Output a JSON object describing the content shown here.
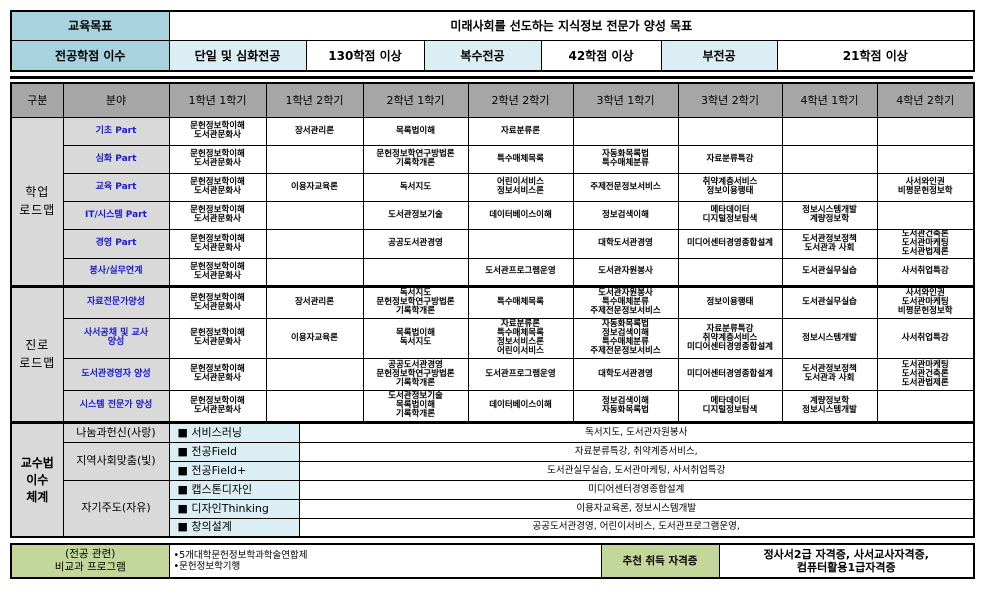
{
  "goal": {
    "label": "교육목표",
    "value": "미래사회를 선도하는 지식정보 전문가 양성 목표"
  },
  "credits": {
    "label": "전공학점 이수",
    "items": [
      {
        "name": "단일 및 심화전공",
        "value": "130학점 이상"
      },
      {
        "name": "복수전공",
        "value": "42학점 이상"
      },
      {
        "name": "부전공",
        "value": "21학점 이상"
      }
    ]
  },
  "roadmap": {
    "headers": [
      "구분",
      "분야",
      "1학년 1학기",
      "1학년 2학기",
      "2학년 1학기",
      "2학년 2학기",
      "3학년 1학기",
      "3학년 2학기",
      "4학년 1학기",
      "4학년 2학기"
    ],
    "groups": [
      {
        "label": "학업\n로드맵",
        "rows": [
          {
            "field": "기초 Part",
            "cells": [
              "문헌정보학이해\n도서관문화사",
              "장서관리론",
              "목록법이해",
              "자료분류론",
              "",
              "",
              "",
              ""
            ]
          },
          {
            "field": "심화 Part",
            "cells": [
              "문헌정보학이해\n도서관문화사",
              "",
              "문헌정보학연구방법론\n기록학개론",
              "특수매체목록",
              "자동화목록법\n특수매체분류",
              "자료분류특강",
              "",
              ""
            ]
          },
          {
            "field": "교육 Part",
            "cells": [
              "문헌정보학이해\n도서관문화사",
              "이용자교육론",
              "독서지도",
              "어린이서비스\n정보서비스론",
              "주제전문정보서비스",
              "취약계층서비스\n정보이용행태",
              "",
              "사서와인권\n비평문헌정보학"
            ]
          },
          {
            "field": "IT/시스템 Part",
            "cells": [
              "문헌정보학이해\n도서관문화사",
              "",
              "도서관정보기술",
              "데이터베이스이해",
              "정보검색이해",
              "메타데이터\n디지털정보탐색",
              "정보시스템개발\n계량정보학",
              ""
            ]
          },
          {
            "field": "경영 Part",
            "cells": [
              "문헌정보학이해\n도서관문화사",
              "",
              "공공도서관경영",
              "",
              "대학도서관경영",
              "미디어센터경영종합설계",
              "도서관정보정책\n도서관과 사회",
              "도서관건축론\n도서관마케팅\n도서관법제론"
            ]
          },
          {
            "field": "봉사/실무연계",
            "cells": [
              "문헌정보학이해\n도서관문화사",
              "",
              "",
              "도서관프로그램운영",
              "도서관자원봉사",
              "",
              "도서관실무실습",
              "사서취업특강"
            ]
          }
        ]
      },
      {
        "label": "진로\n로드맵",
        "rows": [
          {
            "field": "자료전문가양성",
            "cells": [
              "문헌정보학이해\n도서관문화사",
              "장서관리론",
              "독서지도\n문헌정보학연구방법론\n기록학개론",
              "특수매체목록",
              "도서관자원봉사\n특수매체분류\n주제전문정보서비스",
              "정보이용행태",
              "도서관실무실습",
              "사서와인권\n도서관마케팅\n비평문헌정보학"
            ]
          },
          {
            "field": "사서공채 및 교사\n양성",
            "cells": [
              "문헌정보학이해\n도서관문화사",
              "이용자교육론",
              "목록법이해\n독서지도",
              "자료분류론\n특수매체목록\n정보서비스론\n어린이서비스",
              "자동화목록법\n정보검색이해\n특수매체분류\n주제전문정보서비스",
              "자료분류특강\n취약계층서비스\n미디어센터경영종합설계",
              "정보시스템개발",
              "사서취업특강"
            ]
          },
          {
            "field": "도서관경영자 양성",
            "cells": [
              "문헌정보학이해\n도서관문화사",
              "",
              "공공도서관경영\n문헌정보학연구방법론\n기록학개론",
              "도서관프로그램운영",
              "대학도서관경영",
              "미디어센터경영종합설계",
              "도서관정보정책\n도서관과 사회",
              "도서관마케팅\n도서관건축론\n도서관법제론"
            ]
          },
          {
            "field": "시스템 전문가 양성",
            "cells": [
              "문헌정보학이해\n도서관문화사",
              "",
              "도서관정보기술\n목록법이해\n기록학개론",
              "데이터베이스이해",
              "정보검색이해\n자동화목록법",
              "메타데이터\n디지털정보탐색",
              "계량정보학\n정보시스템개발",
              ""
            ]
          }
        ]
      }
    ]
  },
  "pedagogy": {
    "label": "교수법\n이수\n체계",
    "categories": [
      {
        "name": "나눔과헌신(사랑)",
        "items": [
          {
            "name": "■ 서비스러닝",
            "courses": "독서지도, 도서관자원봉사"
          }
        ]
      },
      {
        "name": "지역사회맞춤(빛)",
        "items": [
          {
            "name": "■ 전공Field",
            "courses": "자료분류특강, 취약계층서비스,"
          },
          {
            "name": "■ 전공Field+",
            "courses": "도서관실무실습, 도서관마케팅, 사서취업특강"
          }
        ]
      },
      {
        "name": "자기주도(자유)",
        "items": [
          {
            "name": "■ 캡스톤디자인",
            "courses": "미디어센터경영종합설계"
          },
          {
            "name": "■ 디자인Thinking",
            "courses": "이용자교육론, 정보시스템개발"
          },
          {
            "name": "■ 창의설계",
            "courses": "공공도서관경영, 어린이서비스, 도서관프로그램운영,"
          }
        ]
      }
    ]
  },
  "extra": {
    "label": "(전공 관련)\n비교과 프로그램",
    "items": "•5개대학문헌정보학과학술연합제\n•문헌정보학기행",
    "cert_label": "추천 취득 자격증",
    "certs": "정사서2급 자격증, 사서교사자격증,\n컴퓨터활용1급자격증"
  }
}
